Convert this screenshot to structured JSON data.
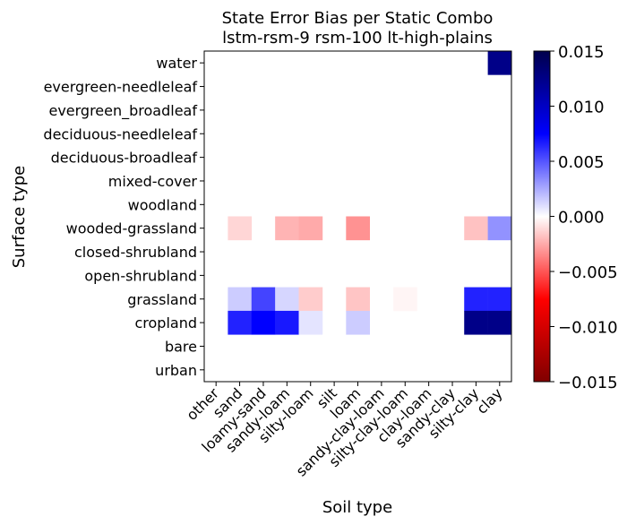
{
  "chart_data": {
    "type": "heatmap",
    "title": "State Error Bias per Static Combo",
    "subtitle": "lstm-rsm-9 rsm-100 lt-high-plains",
    "xlabel": "Soil type",
    "ylabel": "Surface type",
    "x_categories": [
      "other",
      "sand",
      "loamy-sand",
      "sandy-loam",
      "silty-loam",
      "silt",
      "loam",
      "sandy-clay-loam",
      "silty-clay-loam",
      "clay-loam",
      "sandy-clay",
      "silty-clay",
      "clay"
    ],
    "y_categories": [
      "water",
      "evergreen-needleleaf",
      "evergreen_broadleaf",
      "deciduous-needleleaf",
      "deciduous-broadleaf",
      "mixed-cover",
      "woodland",
      "wooded-grassland",
      "closed-shrubland",
      "open-shrubland",
      "grassland",
      "cropland",
      "bare",
      "urban"
    ],
    "values": [
      [
        null,
        null,
        null,
        null,
        null,
        null,
        null,
        null,
        null,
        null,
        null,
        null,
        0.0125
      ],
      [
        null,
        null,
        null,
        null,
        null,
        null,
        null,
        null,
        null,
        null,
        null,
        null,
        null
      ],
      [
        null,
        null,
        null,
        null,
        null,
        null,
        null,
        null,
        null,
        null,
        null,
        null,
        null
      ],
      [
        null,
        null,
        null,
        null,
        null,
        null,
        null,
        null,
        null,
        null,
        null,
        null,
        null
      ],
      [
        null,
        null,
        null,
        null,
        null,
        null,
        null,
        null,
        null,
        null,
        null,
        null,
        null
      ],
      [
        null,
        null,
        null,
        null,
        null,
        null,
        null,
        null,
        null,
        null,
        null,
        null,
        null
      ],
      [
        null,
        null,
        null,
        null,
        null,
        null,
        null,
        null,
        null,
        null,
        null,
        null,
        null
      ],
      [
        null,
        -0.0012,
        null,
        -0.0022,
        -0.0025,
        null,
        -0.0032,
        null,
        null,
        null,
        null,
        -0.0018,
        0.0032
      ],
      [
        null,
        null,
        null,
        null,
        null,
        null,
        null,
        null,
        null,
        null,
        null,
        null,
        null
      ],
      [
        null,
        null,
        null,
        null,
        null,
        null,
        null,
        null,
        null,
        null,
        null,
        null,
        null
      ],
      [
        null,
        0.0015,
        0.0055,
        0.0012,
        -0.0015,
        null,
        -0.0017,
        null,
        -0.0003,
        null,
        null,
        0.0065,
        0.0065
      ],
      [
        null,
        0.0065,
        0.0075,
        0.0068,
        0.0008,
        null,
        0.0015,
        null,
        null,
        null,
        null,
        0.0125,
        0.0125
      ],
      [
        null,
        null,
        null,
        null,
        null,
        null,
        null,
        null,
        null,
        null,
        null,
        null,
        null
      ],
      [
        null,
        null,
        null,
        null,
        null,
        null,
        null,
        null,
        null,
        null,
        null,
        null,
        null
      ]
    ],
    "colorbar": {
      "colormap": "seismic_r",
      "min": -0.015,
      "max": 0.015,
      "ticks": [
        0.015,
        0.01,
        0.005,
        0.0,
        -0.005,
        -0.01,
        -0.015
      ],
      "tick_labels": [
        "0.015",
        "0.010",
        "0.005",
        "0.000",
        "−0.005",
        "−0.010",
        "−0.015"
      ]
    }
  }
}
